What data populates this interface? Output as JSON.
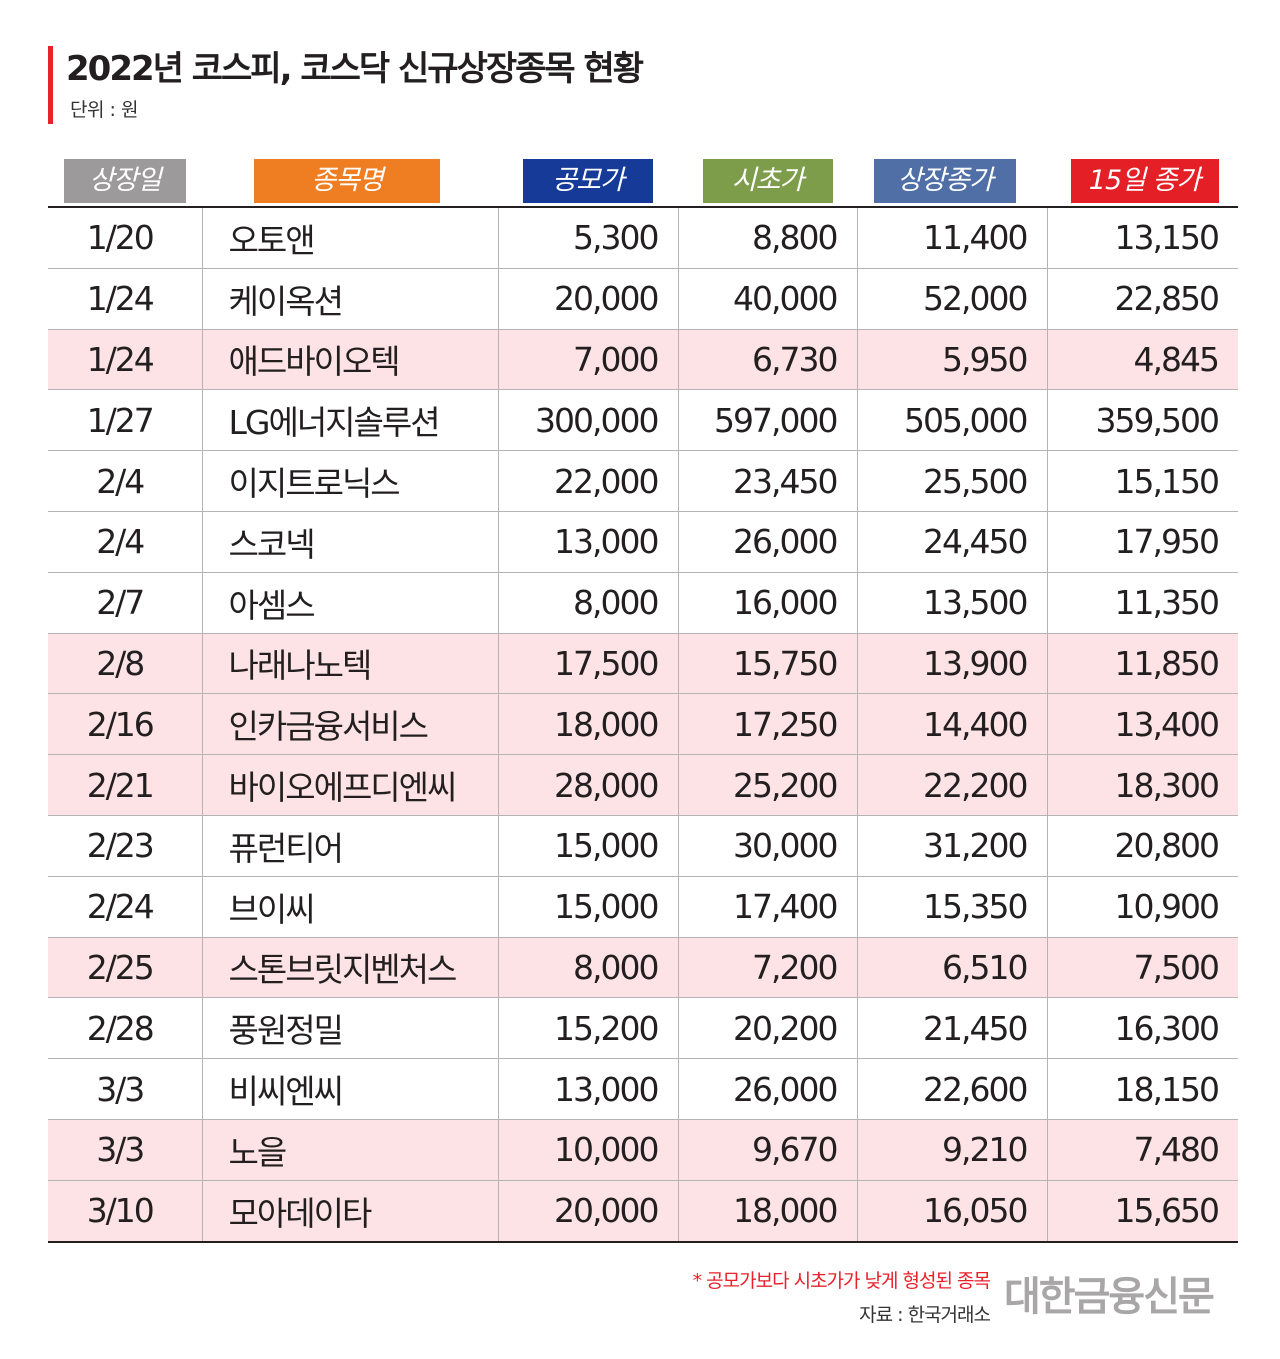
{
  "title": "2022년 코스피, 코스닥 신규상장종목 현황",
  "unit": "단위 : 원",
  "headers": [
    "상장일",
    "종목명",
    "공모가",
    "시초가",
    "상장종가",
    "15일 종가"
  ],
  "header_colors": [
    "#9c9a9a",
    "#ef7d22",
    "#153a97",
    "#7e9d4a",
    "#4f6fa6",
    "#e41f26"
  ],
  "highlight_color": "#fde3e5",
  "rows": [
    {
      "date": "1/20",
      "name": "오토앤",
      "ipo": "5,300",
      "open": "8,800",
      "close": "11,400",
      "close15": "13,150",
      "highlight": false
    },
    {
      "date": "1/24",
      "name": "케이옥션",
      "ipo": "20,000",
      "open": "40,000",
      "close": "52,000",
      "close15": "22,850",
      "highlight": false
    },
    {
      "date": "1/24",
      "name": "애드바이오텍",
      "ipo": "7,000",
      "open": "6,730",
      "close": "5,950",
      "close15": "4,845",
      "highlight": true
    },
    {
      "date": "1/27",
      "name": "LG에너지솔루션",
      "ipo": "300,000",
      "open": "597,000",
      "close": "505,000",
      "close15": "359,500",
      "highlight": false
    },
    {
      "date": "2/4",
      "name": "이지트로닉스",
      "ipo": "22,000",
      "open": "23,450",
      "close": "25,500",
      "close15": "15,150",
      "highlight": false
    },
    {
      "date": "2/4",
      "name": "스코넥",
      "ipo": "13,000",
      "open": "26,000",
      "close": "24,450",
      "close15": "17,950",
      "highlight": false
    },
    {
      "date": "2/7",
      "name": "아셈스",
      "ipo": "8,000",
      "open": "16,000",
      "close": "13,500",
      "close15": "11,350",
      "highlight": false
    },
    {
      "date": "2/8",
      "name": "나래나노텍",
      "ipo": "17,500",
      "open": "15,750",
      "close": "13,900",
      "close15": "11,850",
      "highlight": true
    },
    {
      "date": "2/16",
      "name": "인카금융서비스",
      "ipo": "18,000",
      "open": "17,250",
      "close": "14,400",
      "close15": "13,400",
      "highlight": true
    },
    {
      "date": "2/21",
      "name": "바이오에프디엔씨",
      "ipo": "28,000",
      "open": "25,200",
      "close": "22,200",
      "close15": "18,300",
      "highlight": true
    },
    {
      "date": "2/23",
      "name": "퓨런티어",
      "ipo": "15,000",
      "open": "30,000",
      "close": "31,200",
      "close15": "20,800",
      "highlight": false
    },
    {
      "date": "2/24",
      "name": "브이씨",
      "ipo": "15,000",
      "open": "17,400",
      "close": "15,350",
      "close15": "10,900",
      "highlight": false
    },
    {
      "date": "2/25",
      "name": "스톤브릿지벤처스",
      "ipo": "8,000",
      "open": "7,200",
      "close": "6,510",
      "close15": "7,500",
      "highlight": true
    },
    {
      "date": "2/28",
      "name": "풍원정밀",
      "ipo": "15,200",
      "open": "20,200",
      "close": "21,450",
      "close15": "16,300",
      "highlight": false
    },
    {
      "date": "3/3",
      "name": "비씨엔씨",
      "ipo": "13,000",
      "open": "26,000",
      "close": "22,600",
      "close15": "18,150",
      "highlight": false
    },
    {
      "date": "3/3",
      "name": "노을",
      "ipo": "10,000",
      "open": "9,670",
      "close": "9,210",
      "close15": "7,480",
      "highlight": true
    },
    {
      "date": "3/10",
      "name": "모아데이타",
      "ipo": "20,000",
      "open": "18,000",
      "close": "16,050",
      "close15": "15,650",
      "highlight": true
    }
  ],
  "note": "* 공모가보다 시초가가 낮게 형성된 종목",
  "source": "자료 : 한국거래소",
  "logo": "대한금융신문"
}
